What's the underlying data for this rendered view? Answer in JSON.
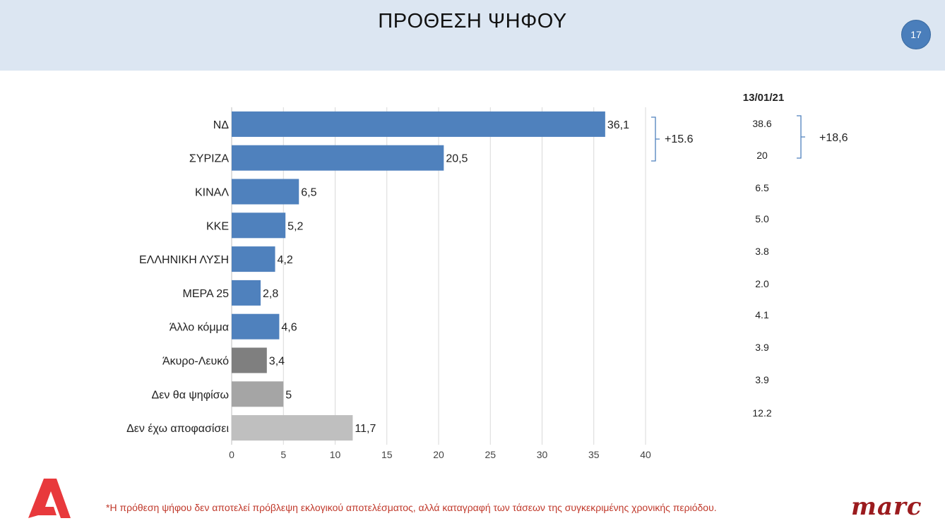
{
  "header": {
    "title": "ΠΡΟΘΕΣΗ ΨΗΦΟΥ",
    "page_number": "17"
  },
  "chart_data": {
    "type": "bar",
    "orientation": "horizontal",
    "categories": [
      "ΝΔ",
      "ΣΥΡΙΖΑ",
      "ΚΙΝΑΛ",
      "ΚΚΕ",
      "ΕΛΛΗΝΙΚΗ ΛΥΣΗ",
      "ΜΕΡΑ 25",
      "Άλλο κόμμα",
      "Άκυρο-Λευκό",
      "Δεν θα ψηφίσω",
      "Δεν έχω αποφασίσει"
    ],
    "values": [
      36.1,
      20.5,
      6.5,
      5.2,
      4.2,
      2.8,
      4.6,
      3.4,
      5,
      11.7
    ],
    "value_labels": [
      "36,1",
      "20,5",
      "6,5",
      "5,2",
      "4,2",
      "2,8",
      "4,6",
      "3,4",
      "5",
      "11,7"
    ],
    "bar_colors": [
      "#4f81bd",
      "#4f81bd",
      "#4f81bd",
      "#4f81bd",
      "#4f81bd",
      "#4f81bd",
      "#4f81bd",
      "#7f7f7f",
      "#a5a5a5",
      "#bfbfbf"
    ],
    "xlim": [
      0,
      40
    ],
    "xticks": [
      0,
      5,
      10,
      15,
      20,
      25,
      30,
      35,
      40
    ],
    "grid": true,
    "gap_annotation": "+15.6",
    "comparison": {
      "date": "13/01/21",
      "values": [
        "38.6",
        "20",
        "6.5",
        "5.0",
        "3.8",
        "2.0",
        "4.1",
        "3.9",
        "3.9",
        "12.2"
      ],
      "gap_annotation": "+18,6"
    }
  },
  "footer": {
    "footnote": "*Η πρόθεση ψήφου δεν αποτελεί πρόβλεψη εκλογικού αποτελέσματος, αλλά καταγραφή των τάσεων της συγκεκριμένης χρονικής περιόδου.",
    "brand_logo": "marc"
  }
}
